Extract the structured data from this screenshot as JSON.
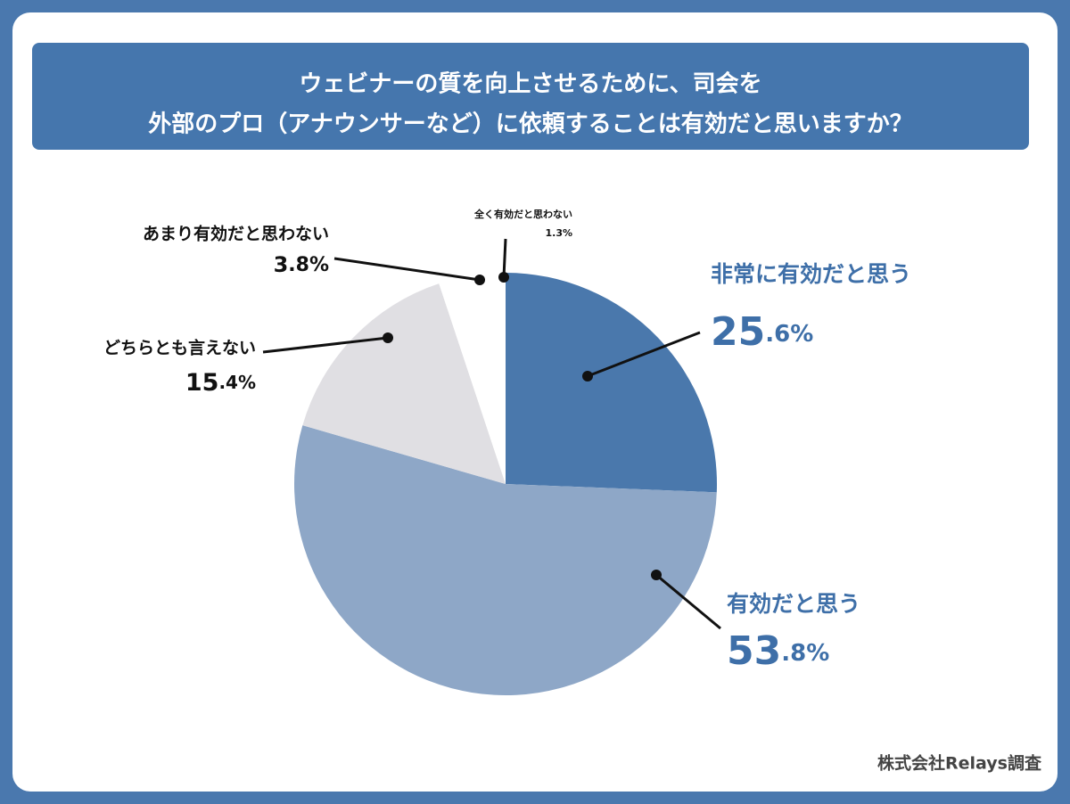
{
  "chart_data": {
    "type": "pie",
    "title": [
      "ウェビナーの質を向上させるために、司会を",
      "外部のプロ（アナウンサーなど）に依頼することは有効だと思いますか？"
    ],
    "categories": [
      "非常に有効だと思う",
      "有効だと思う",
      "どちらとも言えない",
      "あまり有効だと思わない",
      "全く有効だと思わない"
    ],
    "values": [
      25.6,
      53.8,
      15.4,
      3.8,
      1.3
    ],
    "value_labels": [
      "25.6%",
      "53.8%",
      "15.4%",
      "3.8%",
      "1.3%"
    ],
    "colors": [
      "#4a78ac",
      "#8ea7c7",
      "#e0dfe3",
      "#ffffff",
      "#ffffff"
    ],
    "source": "株式会社Relays調査"
  }
}
